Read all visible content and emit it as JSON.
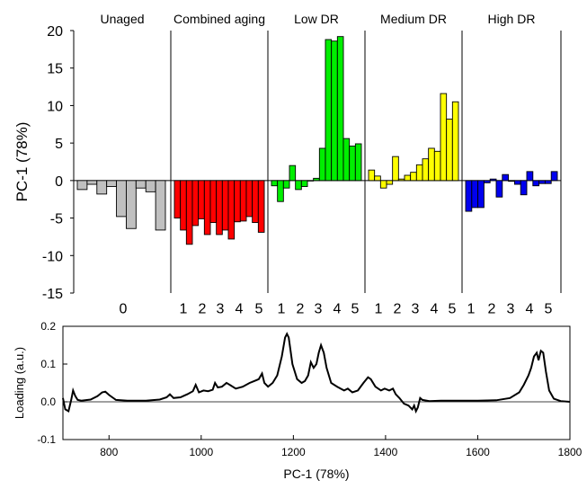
{
  "chart_data": [
    {
      "type": "bar",
      "ylabel": "PC-1 (78%)",
      "ylim": [
        -15,
        20
      ],
      "yticks": [
        -15,
        -10,
        -5,
        0,
        5,
        10,
        15,
        20
      ],
      "tick_labels": [
        "-15",
        "-10",
        "-5",
        "0",
        "5",
        "10",
        "15",
        "20"
      ],
      "groups": [
        {
          "name": "Unaged",
          "color": "#c0c0c0",
          "bottom_labels": [
            "0"
          ],
          "values": [
            -1.2,
            -0.5,
            -1.8,
            -0.8,
            -4.8,
            -6.4,
            -1.0,
            -1.5,
            -6.6
          ]
        },
        {
          "name": "Combined aging",
          "color": "#ff0000",
          "bottom_labels": [
            "1",
            "2",
            "3",
            "4",
            "5"
          ],
          "values": [
            -5.0,
            -6.6,
            -8.5,
            -6.0,
            -5.1,
            -7.2,
            -5.6,
            -7.2,
            -6.6,
            -7.8,
            -5.5,
            -5.4,
            -4.8,
            -5.6,
            -6.9
          ]
        },
        {
          "name": "Low DR",
          "color": "#00ee00",
          "bottom_labels": [
            "1",
            "2",
            "3",
            "4",
            "5"
          ],
          "values": [
            -0.7,
            -2.8,
            -1.0,
            2.0,
            -1.2,
            -0.8,
            0.0,
            0.3,
            4.3,
            18.8,
            18.6,
            19.2,
            5.6,
            4.6,
            4.9
          ]
        },
        {
          "name": "Medium DR",
          "color": "#ffff00",
          "bottom_labels": [
            "1",
            "2",
            "3",
            "4",
            "5"
          ],
          "values": [
            1.4,
            0.6,
            -1.0,
            -0.5,
            3.2,
            0.2,
            0.7,
            1.1,
            2.1,
            2.9,
            4.3,
            3.9,
            11.6,
            8.2,
            10.5
          ]
        },
        {
          "name": "High DR",
          "color": "#0000ee",
          "bottom_labels": [
            "1",
            "2",
            "3",
            "4",
            "5"
          ],
          "values": [
            -4.1,
            -3.6,
            -3.6,
            -0.3,
            0.2,
            -2.2,
            0.8,
            -0.1,
            -0.5,
            -1.9,
            1.2,
            -0.7,
            -0.4,
            -0.4,
            1.2
          ]
        }
      ]
    },
    {
      "type": "line",
      "xlabel": "PC-1 (78%)",
      "ylabel": "Loading (a.u.)",
      "xlim": [
        700,
        1800
      ],
      "ylim": [
        -0.1,
        0.2
      ],
      "xticks": [
        800,
        1000,
        1200,
        1400,
        1600,
        1800
      ],
      "xtick_labels": [
        "800",
        "1000",
        "1200",
        "1400",
        "1600",
        "1800"
      ],
      "yticks": [
        -0.1,
        0.0,
        0.1,
        0.2
      ],
      "ytick_labels": [
        "-0.1",
        "0.0",
        "0.1",
        "0.2"
      ],
      "series": [
        {
          "x": [
            700,
            705,
            712,
            718,
            722,
            727,
            732,
            740,
            760,
            775,
            785,
            792,
            800,
            815,
            840,
            880,
            910,
            925,
            932,
            940,
            955,
            970,
            982,
            988,
            995,
            1005,
            1015,
            1025,
            1030,
            1036,
            1045,
            1055,
            1062,
            1075,
            1090,
            1105,
            1115,
            1125,
            1132,
            1137,
            1145,
            1155,
            1165,
            1175,
            1182,
            1186,
            1190,
            1198,
            1208,
            1218,
            1225,
            1232,
            1238,
            1244,
            1250,
            1255,
            1260,
            1266,
            1272,
            1282,
            1295,
            1310,
            1318,
            1328,
            1340,
            1352,
            1362,
            1368,
            1378,
            1390,
            1398,
            1408,
            1416,
            1422,
            1430,
            1440,
            1450,
            1458,
            1462,
            1466,
            1470,
            1475,
            1480,
            1495,
            1520,
            1560,
            1600,
            1640,
            1670,
            1690,
            1700,
            1710,
            1716,
            1722,
            1728,
            1732,
            1737,
            1742,
            1748,
            1755,
            1765,
            1780,
            1800
          ],
          "y": [
            0.01,
            -0.02,
            -0.025,
            0.005,
            0.03,
            0.015,
            0.005,
            0.003,
            0.006,
            0.015,
            0.025,
            0.027,
            0.018,
            0.005,
            0.003,
            0.003,
            0.006,
            0.012,
            0.02,
            0.01,
            0.012,
            0.02,
            0.028,
            0.045,
            0.025,
            0.03,
            0.028,
            0.032,
            0.05,
            0.038,
            0.04,
            0.05,
            0.045,
            0.035,
            0.04,
            0.05,
            0.055,
            0.06,
            0.075,
            0.05,
            0.04,
            0.05,
            0.07,
            0.12,
            0.17,
            0.18,
            0.17,
            0.1,
            0.06,
            0.05,
            0.055,
            0.07,
            0.105,
            0.09,
            0.1,
            0.13,
            0.15,
            0.13,
            0.09,
            0.05,
            0.04,
            0.03,
            0.035,
            0.025,
            0.03,
            0.05,
            0.065,
            0.06,
            0.04,
            0.03,
            0.035,
            0.03,
            0.035,
            0.02,
            0.01,
            -0.005,
            -0.01,
            -0.02,
            -0.01,
            -0.025,
            -0.015,
            0.01,
            0.005,
            0.002,
            0.003,
            0.003,
            0.003,
            0.004,
            0.01,
            0.025,
            0.045,
            0.07,
            0.09,
            0.12,
            0.13,
            0.11,
            0.135,
            0.13,
            0.08,
            0.03,
            0.008,
            0.002,
            0.0
          ]
        }
      ]
    }
  ]
}
